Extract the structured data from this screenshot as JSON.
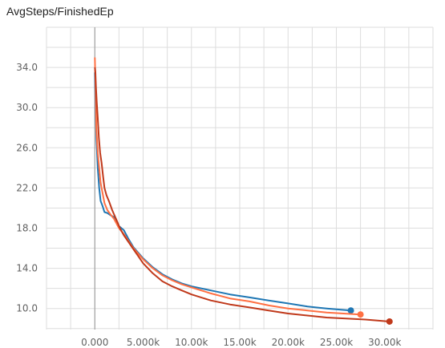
{
  "chart_data": {
    "type": "line",
    "title": "AvgSteps/FinishedEp",
    "xlabel": "",
    "ylabel": "",
    "xlim": [
      -5000,
      35000
    ],
    "ylim": [
      7.9,
      38.0
    ],
    "x_ticks": [
      0,
      5000,
      10000,
      15000,
      20000,
      25000,
      30000
    ],
    "x_tick_labels": [
      "0.000",
      "5.000k",
      "10.00k",
      "15.00k",
      "20.00k",
      "25.00k",
      "30.00k"
    ],
    "y_ticks": [
      10,
      14,
      18,
      22,
      26,
      30,
      34
    ],
    "y_tick_labels": [
      "10.0",
      "14.0",
      "18.0",
      "22.0",
      "26.0",
      "30.0",
      "34.0"
    ],
    "grid": true,
    "series": [
      {
        "color": "#1f77b4",
        "end_marker": true,
        "x": [
          0,
          80,
          160,
          300,
          450,
          600,
          800,
          1000,
          1300,
          1600,
          2000,
          2500,
          3000,
          3500,
          4000,
          5000,
          6000,
          7000,
          8000,
          9000,
          10000,
          12000,
          14000,
          16000,
          18000,
          20000,
          22000,
          24000,
          26500
        ],
        "y": [
          33.5,
          30.0,
          27.0,
          24.0,
          22.0,
          20.7,
          20.2,
          19.6,
          19.5,
          19.3,
          19.1,
          18.2,
          17.8,
          16.9,
          16.1,
          15.0,
          14.1,
          13.4,
          12.9,
          12.5,
          12.2,
          11.8,
          11.4,
          11.1,
          10.8,
          10.5,
          10.2,
          10.0,
          9.8
        ]
      },
      {
        "color": "#ff7043",
        "end_marker": true,
        "x": [
          0,
          80,
          150,
          300,
          450,
          600,
          800,
          1000,
          1300,
          1600,
          2000,
          2500,
          3000,
          3500,
          4000,
          5000,
          6000,
          7000,
          8000,
          9000,
          10000,
          12000,
          14000,
          16000,
          18000,
          20000,
          22000,
          24000,
          27500
        ],
        "y": [
          35.0,
          32.0,
          28.0,
          25.5,
          24.0,
          22.5,
          21.5,
          20.5,
          19.8,
          19.4,
          18.9,
          18.0,
          17.4,
          16.7,
          16.0,
          14.9,
          14.0,
          13.3,
          12.8,
          12.4,
          12.1,
          11.5,
          11.0,
          10.7,
          10.3,
          10.0,
          9.8,
          9.6,
          9.4
        ]
      },
      {
        "color": "#c0391b",
        "end_marker": true,
        "x": [
          0,
          60,
          120,
          200,
          300,
          420,
          550,
          700,
          850,
          1000,
          1200,
          1500,
          1800,
          2200,
          2600,
          3000,
          3500,
          4000,
          4500,
          5000,
          6000,
          7000,
          8000,
          9000,
          10000,
          12000,
          14000,
          16000,
          18000,
          20000,
          22000,
          24000,
          26000,
          28000,
          30500
        ],
        "y": [
          34.0,
          33.5,
          32.0,
          30.5,
          29.0,
          27.0,
          25.5,
          24.5,
          23.2,
          22.0,
          21.3,
          20.6,
          19.8,
          18.9,
          18.0,
          17.3,
          16.6,
          15.9,
          15.2,
          14.5,
          13.5,
          12.7,
          12.2,
          11.8,
          11.4,
          10.8,
          10.4,
          10.1,
          9.8,
          9.5,
          9.3,
          9.1,
          9.0,
          8.9,
          8.7
        ]
      }
    ]
  }
}
